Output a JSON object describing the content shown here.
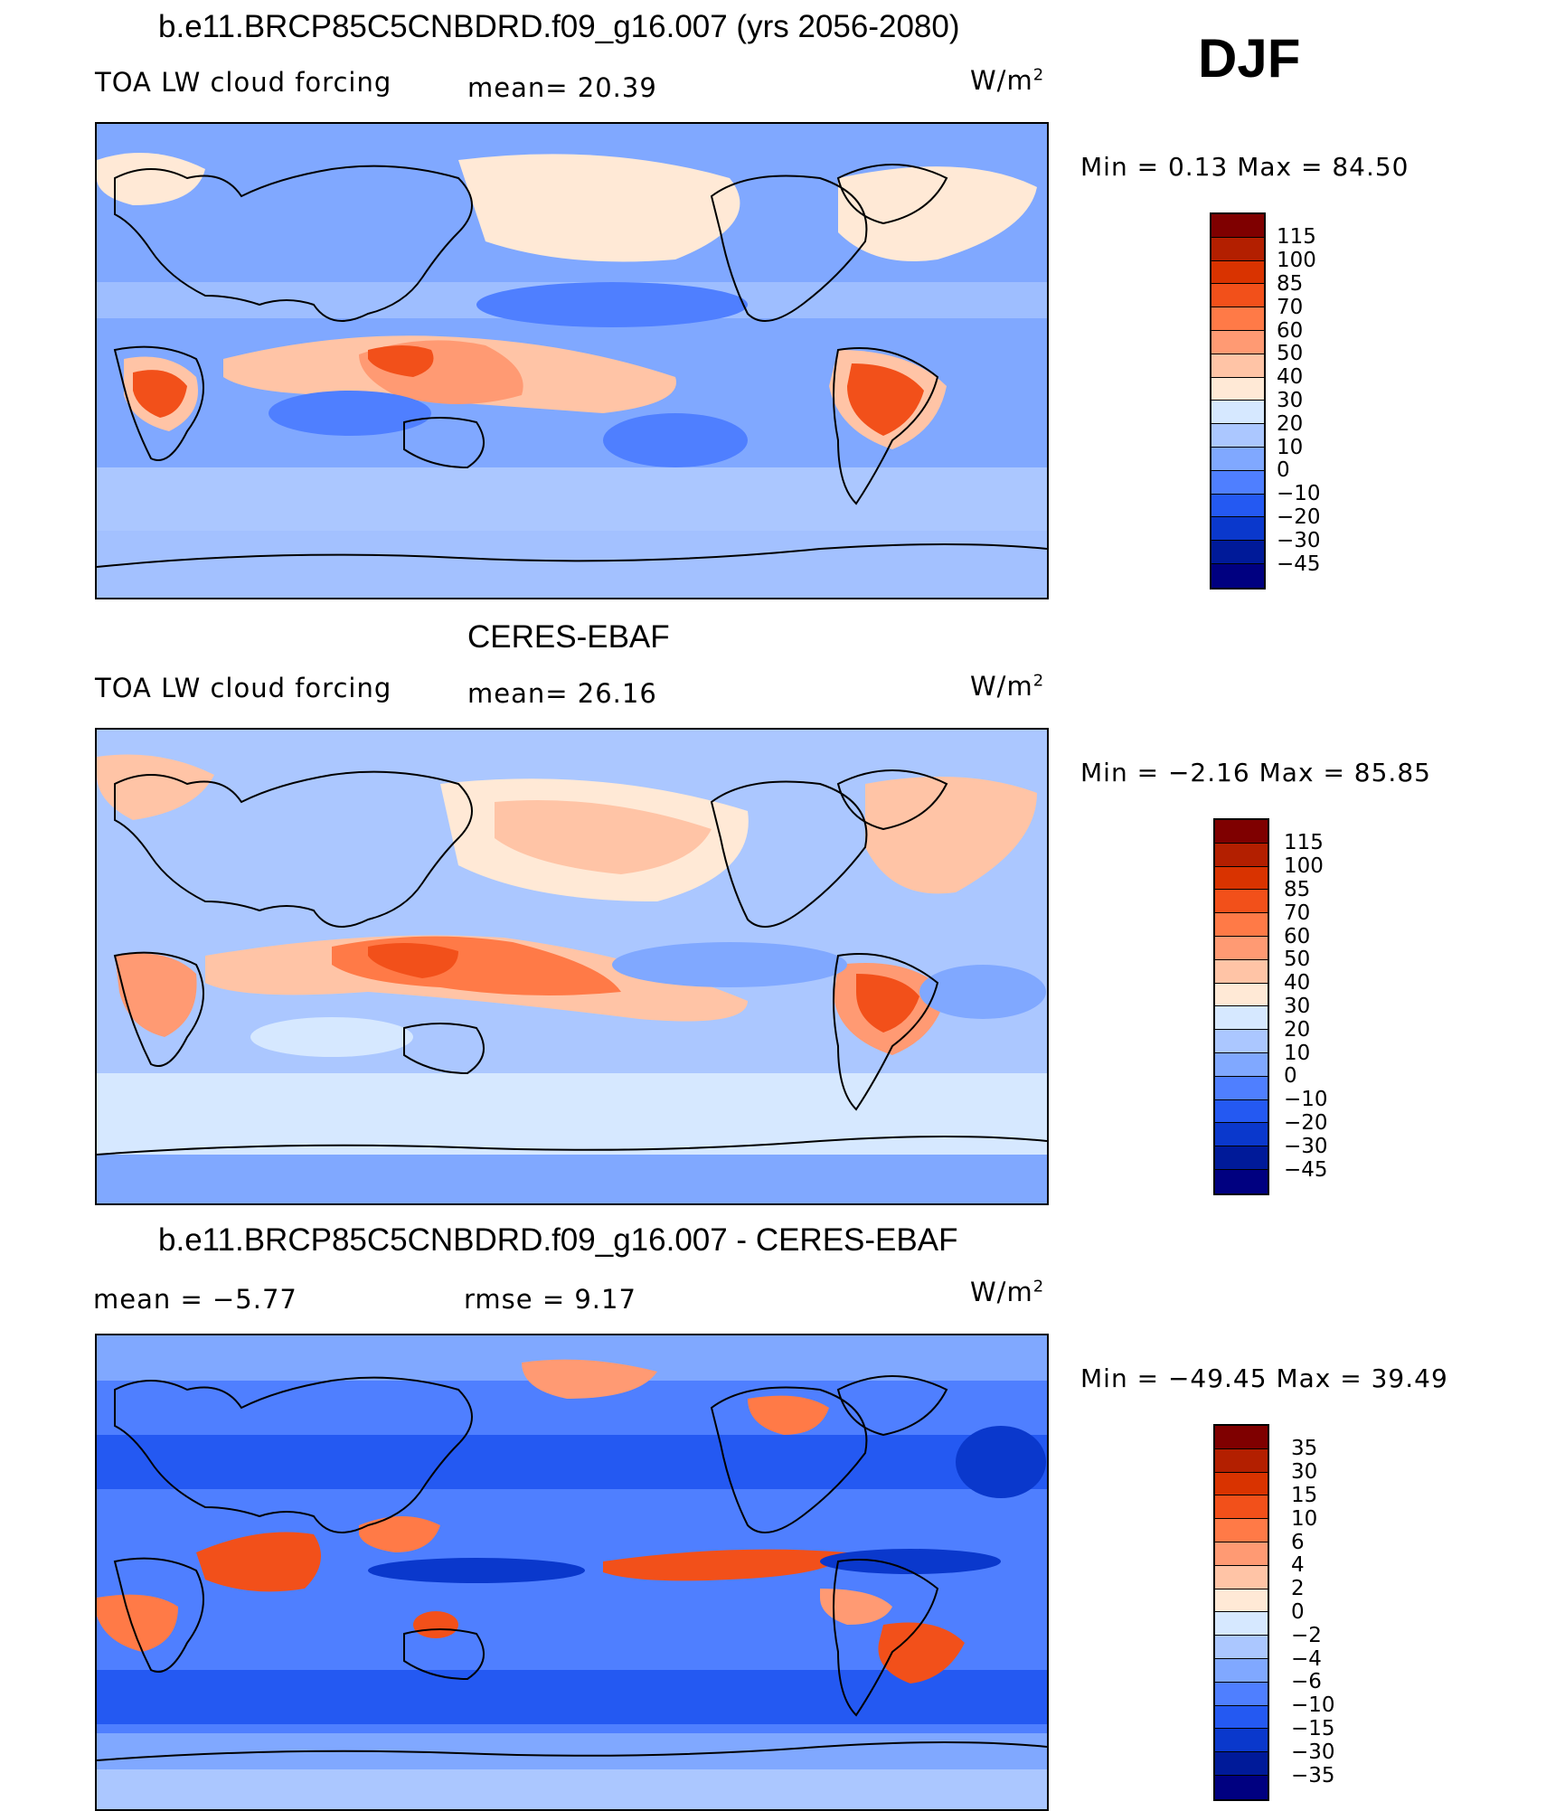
{
  "header": {
    "season": "DJF"
  },
  "panels": [
    {
      "title": "b.e11.BRCP85C5CNBDRD.f09_g16.007 (yrs 2056-2080)",
      "left_label": "TOA LW cloud forcing",
      "mid_label": "mean=   20.39",
      "units": "W/m",
      "units_sup": "2",
      "minmax": "Min =    0.13 Max =   84.50",
      "colorbar": {
        "ticks": [
          "115",
          "100",
          "85",
          "70",
          "60",
          "50",
          "40",
          "30",
          "20",
          "10",
          "0",
          "−10",
          "−20",
          "−30",
          "−45"
        ],
        "colors": [
          "#7f0000",
          "#b31f00",
          "#d93300",
          "#f2501a",
          "#ff7a47",
          "#ff9a73",
          "#ffc4a6",
          "#ffe9d6",
          "#d6e8ff",
          "#abc7ff",
          "#80a8ff",
          "#4f7fff",
          "#2459f2",
          "#0a38cc",
          "#001a99",
          "#000080"
        ]
      }
    },
    {
      "title": "CERES-EBAF",
      "left_label": "TOA LW cloud forcing",
      "mid_label": "mean=   26.16",
      "units": "W/m",
      "units_sup": "2",
      "minmax": "Min =   −2.16 Max =   85.85",
      "colorbar": {
        "ticks": [
          "115",
          "100",
          "85",
          "70",
          "60",
          "50",
          "40",
          "30",
          "20",
          "10",
          "0",
          "−10",
          "−20",
          "−30",
          "−45"
        ],
        "colors": [
          "#7f0000",
          "#b31f00",
          "#d93300",
          "#f2501a",
          "#ff7a47",
          "#ff9a73",
          "#ffc4a6",
          "#ffe9d6",
          "#d6e8ff",
          "#abc7ff",
          "#80a8ff",
          "#4f7fff",
          "#2459f2",
          "#0a38cc",
          "#001a99",
          "#000080"
        ]
      }
    },
    {
      "title": "b.e11.BRCP85C5CNBDRD.f09_g16.007 - CERES-EBAF",
      "left_label": "mean =   −5.77",
      "mid_label": "rmse =    9.17",
      "units": "W/m",
      "units_sup": "2",
      "minmax": "Min = −49.45 Max =   39.49",
      "colorbar": {
        "ticks": [
          "35",
          "30",
          "15",
          "10",
          "6",
          "4",
          "2",
          "0",
          "−2",
          "−4",
          "−6",
          "−10",
          "−15",
          "−30",
          "−35"
        ],
        "colors": [
          "#7f0000",
          "#b31f00",
          "#d93300",
          "#f2501a",
          "#ff7a47",
          "#ff9a73",
          "#ffc4a6",
          "#ffe9d6",
          "#d6e8ff",
          "#abc7ff",
          "#80a8ff",
          "#4f7fff",
          "#2459f2",
          "#0a38cc",
          "#001a99",
          "#000080"
        ]
      }
    }
  ]
}
